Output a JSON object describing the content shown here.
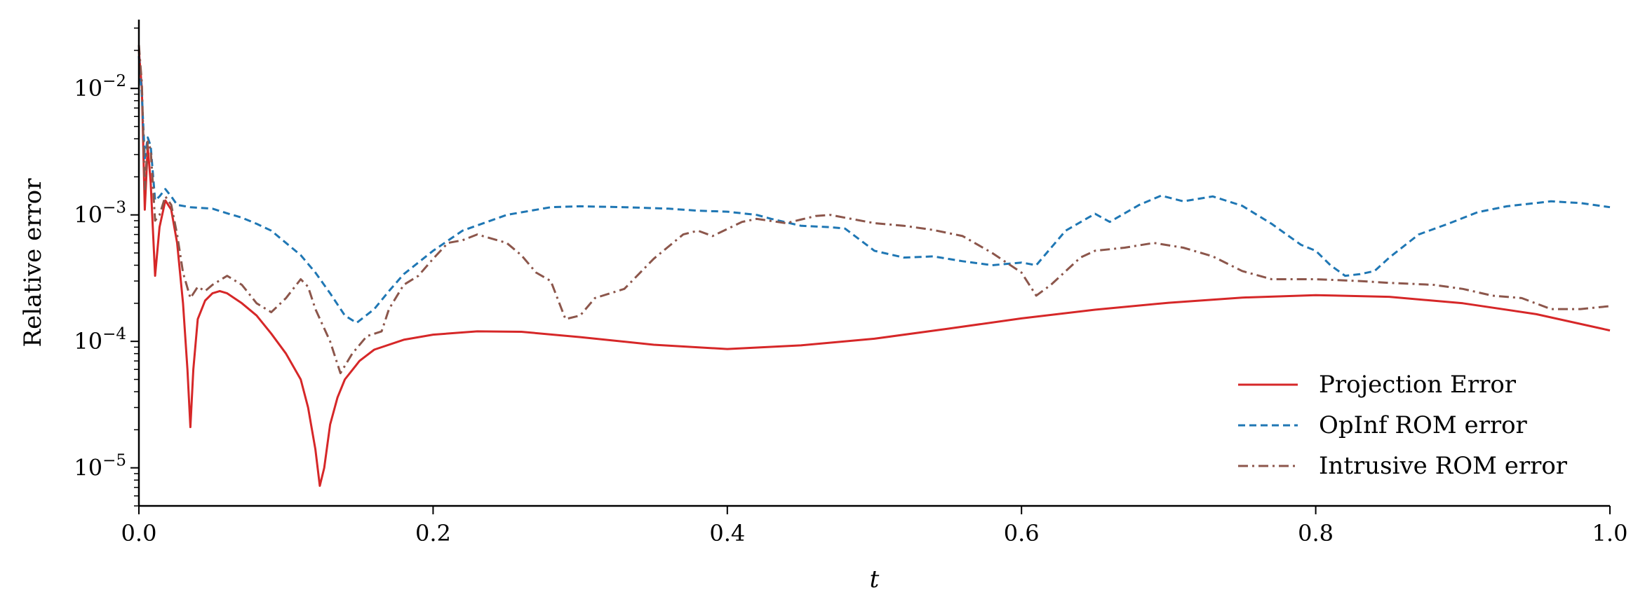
{
  "chart_data": {
    "type": "line",
    "xlabel": "t",
    "ylabel": "Relative error",
    "xlim": [
      0.0,
      1.0
    ],
    "ylim": [
      5e-06,
      0.035
    ],
    "yscale": "log",
    "grid": false,
    "legend_position": "lower-right",
    "x_ticks": [
      {
        "value": 0.0,
        "label": "0.0"
      },
      {
        "value": 0.2,
        "label": "0.2"
      },
      {
        "value": 0.4,
        "label": "0.4"
      },
      {
        "value": 0.6,
        "label": "0.6"
      },
      {
        "value": 0.8,
        "label": "0.8"
      },
      {
        "value": 1.0,
        "label": "1.0"
      }
    ],
    "y_ticks": [
      {
        "value": 1e-05,
        "base": "10",
        "exp": "−5"
      },
      {
        "value": 0.0001,
        "base": "10",
        "exp": "−4"
      },
      {
        "value": 0.001,
        "base": "10",
        "exp": "−3"
      },
      {
        "value": 0.01,
        "base": "10",
        "exp": "−2"
      }
    ],
    "series": [
      {
        "name": "Projection Error",
        "color": "#d62728",
        "dash": "solid",
        "points": [
          [
            0.0,
            0.02
          ],
          [
            0.002,
            0.01
          ],
          [
            0.004,
            0.0011
          ],
          [
            0.006,
            0.0035
          ],
          [
            0.008,
            0.0018
          ],
          [
            0.011,
            0.00033
          ],
          [
            0.014,
            0.0008
          ],
          [
            0.018,
            0.0013
          ],
          [
            0.022,
            0.0011
          ],
          [
            0.026,
            0.0006
          ],
          [
            0.03,
            0.0002
          ],
          [
            0.033,
            6e-05
          ],
          [
            0.035,
            2.1e-05
          ],
          [
            0.037,
            6e-05
          ],
          [
            0.04,
            0.00015
          ],
          [
            0.045,
            0.00021
          ],
          [
            0.05,
            0.00024
          ],
          [
            0.055,
            0.00025
          ],
          [
            0.06,
            0.00024
          ],
          [
            0.07,
            0.0002
          ],
          [
            0.08,
            0.00016
          ],
          [
            0.09,
            0.000115
          ],
          [
            0.1,
            8e-05
          ],
          [
            0.11,
            5e-05
          ],
          [
            0.115,
            3e-05
          ],
          [
            0.12,
            1.4e-05
          ],
          [
            0.123,
            7.2e-06
          ],
          [
            0.126,
            1e-05
          ],
          [
            0.13,
            2.2e-05
          ],
          [
            0.135,
            3.6e-05
          ],
          [
            0.14,
            5e-05
          ],
          [
            0.15,
            7e-05
          ],
          [
            0.16,
            8.6e-05
          ],
          [
            0.18,
            0.000103
          ],
          [
            0.2,
            0.000113
          ],
          [
            0.23,
            0.00012
          ],
          [
            0.26,
            0.000119
          ],
          [
            0.3,
            0.000108
          ],
          [
            0.35,
            9.4e-05
          ],
          [
            0.4,
            8.7e-05
          ],
          [
            0.45,
            9.3e-05
          ],
          [
            0.5,
            0.000105
          ],
          [
            0.55,
            0.000126
          ],
          [
            0.6,
            0.000152
          ],
          [
            0.65,
            0.000178
          ],
          [
            0.7,
            0.000202
          ],
          [
            0.75,
            0.000222
          ],
          [
            0.8,
            0.000232
          ],
          [
            0.85,
            0.000225
          ],
          [
            0.9,
            0.0002
          ],
          [
            0.95,
            0.000164
          ],
          [
            1.0,
            0.000122
          ]
        ]
      },
      {
        "name": "OpInf ROM error",
        "color": "#1f77b4",
        "dash": "dashed",
        "points": [
          [
            0.0,
            0.018
          ],
          [
            0.002,
            0.009
          ],
          [
            0.004,
            0.0028
          ],
          [
            0.006,
            0.0041
          ],
          [
            0.008,
            0.0035
          ],
          [
            0.011,
            0.0013
          ],
          [
            0.014,
            0.0014
          ],
          [
            0.018,
            0.0016
          ],
          [
            0.022,
            0.0014
          ],
          [
            0.026,
            0.0012
          ],
          [
            0.035,
            0.00115
          ],
          [
            0.05,
            0.00112
          ],
          [
            0.06,
            0.00103
          ],
          [
            0.07,
            0.00095
          ],
          [
            0.08,
            0.00085
          ],
          [
            0.09,
            0.00075
          ],
          [
            0.1,
            0.0006
          ],
          [
            0.11,
            0.00048
          ],
          [
            0.12,
            0.00035
          ],
          [
            0.13,
            0.00024
          ],
          [
            0.14,
            0.00016
          ],
          [
            0.148,
            0.00014
          ],
          [
            0.16,
            0.00018
          ],
          [
            0.17,
            0.00025
          ],
          [
            0.18,
            0.00034
          ],
          [
            0.2,
            0.00052
          ],
          [
            0.22,
            0.00075
          ],
          [
            0.25,
            0.001
          ],
          [
            0.28,
            0.00115
          ],
          [
            0.3,
            0.00117
          ],
          [
            0.33,
            0.00115
          ],
          [
            0.36,
            0.00112
          ],
          [
            0.38,
            0.00108
          ],
          [
            0.4,
            0.00106
          ],
          [
            0.42,
            0.001
          ],
          [
            0.43,
            0.00093
          ],
          [
            0.45,
            0.00082
          ],
          [
            0.47,
            0.0008
          ],
          [
            0.48,
            0.00078
          ],
          [
            0.5,
            0.00052
          ],
          [
            0.52,
            0.00046
          ],
          [
            0.54,
            0.00047
          ],
          [
            0.56,
            0.00043
          ],
          [
            0.58,
            0.0004
          ],
          [
            0.6,
            0.00042
          ],
          [
            0.61,
            0.0004
          ],
          [
            0.63,
            0.00075
          ],
          [
            0.65,
            0.00102
          ],
          [
            0.66,
            0.00088
          ],
          [
            0.68,
            0.0012
          ],
          [
            0.695,
            0.00142
          ],
          [
            0.71,
            0.00128
          ],
          [
            0.73,
            0.0014
          ],
          [
            0.75,
            0.00118
          ],
          [
            0.77,
            0.00085
          ],
          [
            0.79,
            0.00058
          ],
          [
            0.8,
            0.00052
          ],
          [
            0.81,
            0.0004
          ],
          [
            0.82,
            0.00033
          ],
          [
            0.83,
            0.00034
          ],
          [
            0.84,
            0.00036
          ],
          [
            0.85,
            0.00046
          ],
          [
            0.87,
            0.0007
          ],
          [
            0.89,
            0.00085
          ],
          [
            0.91,
            0.00105
          ],
          [
            0.93,
            0.00117
          ],
          [
            0.96,
            0.00128
          ],
          [
            0.98,
            0.00124
          ],
          [
            1.0,
            0.00115
          ]
        ]
      },
      {
        "name": "Intrusive ROM error",
        "color": "#8c564b",
        "dash": "dashdot",
        "points": [
          [
            0.0,
            0.022
          ],
          [
            0.002,
            0.011
          ],
          [
            0.004,
            0.0016
          ],
          [
            0.006,
            0.0038
          ],
          [
            0.008,
            0.0033
          ],
          [
            0.011,
            0.0009
          ],
          [
            0.014,
            0.001
          ],
          [
            0.018,
            0.0014
          ],
          [
            0.022,
            0.0012
          ],
          [
            0.026,
            0.0007
          ],
          [
            0.03,
            0.00035
          ],
          [
            0.035,
            0.00022
          ],
          [
            0.04,
            0.00027
          ],
          [
            0.045,
            0.00025
          ],
          [
            0.05,
            0.00028
          ],
          [
            0.06,
            0.00033
          ],
          [
            0.07,
            0.00028
          ],
          [
            0.08,
            0.0002
          ],
          [
            0.09,
            0.00017
          ],
          [
            0.1,
            0.00022
          ],
          [
            0.11,
            0.00031
          ],
          [
            0.115,
            0.00027
          ],
          [
            0.12,
            0.00018
          ],
          [
            0.13,
            0.0001
          ],
          [
            0.137,
            5.6e-05
          ],
          [
            0.145,
            8e-05
          ],
          [
            0.155,
            0.00011
          ],
          [
            0.165,
            0.00012
          ],
          [
            0.17,
            0.00018
          ],
          [
            0.18,
            0.00028
          ],
          [
            0.19,
            0.00033
          ],
          [
            0.2,
            0.00045
          ],
          [
            0.21,
            0.0006
          ],
          [
            0.22,
            0.00063
          ],
          [
            0.23,
            0.0007
          ],
          [
            0.25,
            0.0006
          ],
          [
            0.26,
            0.00048
          ],
          [
            0.27,
            0.00035
          ],
          [
            0.28,
            0.0003
          ],
          [
            0.29,
            0.00015
          ],
          [
            0.3,
            0.00016
          ],
          [
            0.31,
            0.00022
          ],
          [
            0.33,
            0.00026
          ],
          [
            0.35,
            0.00045
          ],
          [
            0.37,
            0.0007
          ],
          [
            0.38,
            0.00075
          ],
          [
            0.39,
            0.00068
          ],
          [
            0.41,
            0.00088
          ],
          [
            0.42,
            0.00093
          ],
          [
            0.44,
            0.00086
          ],
          [
            0.46,
            0.00098
          ],
          [
            0.47,
            0.001
          ],
          [
            0.48,
            0.00095
          ],
          [
            0.5,
            0.00086
          ],
          [
            0.52,
            0.00082
          ],
          [
            0.54,
            0.00076
          ],
          [
            0.56,
            0.00068
          ],
          [
            0.58,
            0.0005
          ],
          [
            0.6,
            0.00035
          ],
          [
            0.61,
            0.00023
          ],
          [
            0.62,
            0.00028
          ],
          [
            0.64,
            0.00046
          ],
          [
            0.65,
            0.00052
          ],
          [
            0.67,
            0.00055
          ],
          [
            0.69,
            0.0006
          ],
          [
            0.71,
            0.00055
          ],
          [
            0.73,
            0.00047
          ],
          [
            0.75,
            0.00036
          ],
          [
            0.77,
            0.00031
          ],
          [
            0.8,
            0.00031
          ],
          [
            0.83,
            0.0003
          ],
          [
            0.85,
            0.00029
          ],
          [
            0.88,
            0.00028
          ],
          [
            0.9,
            0.00026
          ],
          [
            0.92,
            0.00023
          ],
          [
            0.94,
            0.00022
          ],
          [
            0.96,
            0.00018
          ],
          [
            0.98,
            0.00018
          ],
          [
            1.0,
            0.00019
          ]
        ]
      }
    ]
  }
}
